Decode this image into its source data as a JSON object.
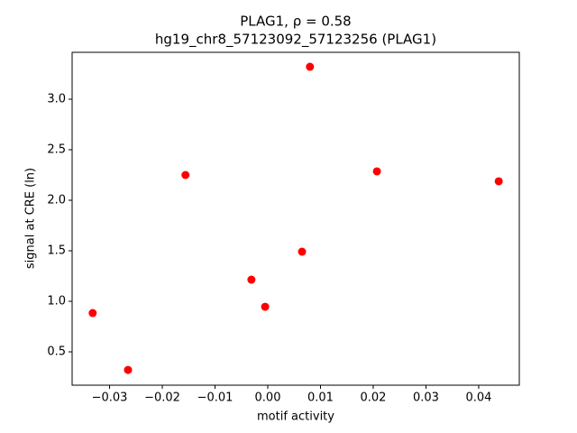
{
  "chart_data": {
    "type": "scatter",
    "title": "PLAG1, ρ = 0.58",
    "subtitle": "hg19_chr8_57123092_57123256 (PLAG1)",
    "x_label": "motif activity",
    "y_label": "signal at CRE (ln)",
    "color": "#ff0000",
    "x": [
      -0.0332,
      -0.0265,
      -0.0156,
      -0.0031,
      -0.0005,
      0.0065,
      0.008,
      0.0207,
      0.0438
    ],
    "values": [
      0.884,
      0.321,
      2.25,
      1.214,
      0.946,
      1.491,
      3.321,
      2.286,
      2.188
    ],
    "xlim": [
      -0.0371,
      0.0477
    ],
    "ylim": [
      0.17,
      3.464
    ],
    "xticks": [
      {
        "value": -0.03,
        "label": "−0.03"
      },
      {
        "value": -0.02,
        "label": "−0.02"
      },
      {
        "value": -0.01,
        "label": "−0.01"
      },
      {
        "value": 0,
        "label": "0.00"
      },
      0.01,
      0.02,
      0.03,
      0.04
    ],
    "yticks": [
      0.5,
      {
        "value": 1,
        "label": "1.0"
      },
      1.5,
      {
        "value": 2,
        "label": "2.0"
      },
      2.5,
      {
        "value": 3,
        "label": "3.0"
      }
    ]
  }
}
